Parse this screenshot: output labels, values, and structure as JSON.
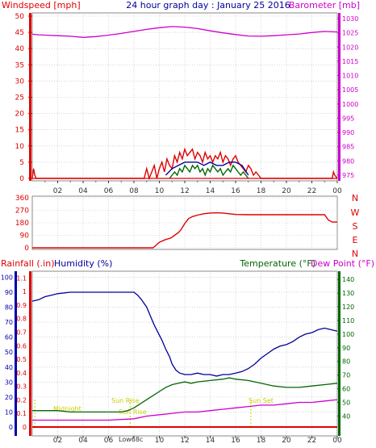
{
  "header": {
    "left_title": "Windspeed [mph]",
    "center_title": "24 hour graph day : January 25 2016",
    "right_title": "Barometer [mb]"
  },
  "direction_labels": [
    "N",
    "W",
    "S",
    "E",
    "N"
  ],
  "bottom_labels": {
    "rainfall": "Rainfall (.in)",
    "humidity": "Humidity (%)",
    "temperature": "Temperature (°F)",
    "dewpoint": "Dew Point (°F)"
  },
  "annotations": {
    "midnight": "Midnight",
    "sunrise": "Sun Rise",
    "sunset": "Sun Set",
    "low": "Low68c"
  },
  "colors": {
    "red": "#e00000",
    "magenta": "#cc00cc",
    "blue": "#000099",
    "green": "#006600",
    "axis_blue": "#0000aa",
    "grid": "#bbbbbb",
    "annotation": "#cccc00",
    "background": "#ffffff"
  },
  "chart_data": [
    {
      "type": "line",
      "name": "top",
      "xlabel": "",
      "x_ticks": [
        "02",
        "04",
        "06",
        "08",
        "10",
        "12",
        "14",
        "16",
        "18",
        "20",
        "22",
        "00"
      ],
      "xlim": [
        0,
        24
      ],
      "y_left": {
        "label": "Windspeed [mph]",
        "ticks": [
          0,
          5,
          10,
          15,
          20,
          25,
          30,
          35,
          40,
          45,
          50
        ],
        "ylim": [
          0,
          50
        ]
      },
      "y_right": {
        "label": "Barometer [mb]",
        "ticks": [
          975,
          980,
          985,
          990,
          995,
          1000,
          1005,
          1010,
          1015,
          1020,
          1025,
          1030
        ],
        "ylim": [
          973,
          1032
        ]
      },
      "grid": true,
      "series": [
        {
          "name": "Barometer",
          "axis": "right",
          "color": "#cc00cc",
          "x": [
            0,
            0.5,
            1,
            2,
            3,
            4,
            5,
            6,
            7,
            8,
            9,
            10,
            11,
            12,
            13,
            14,
            15,
            16,
            17,
            18,
            19,
            20,
            21,
            22,
            23,
            24
          ],
          "y": [
            1024.5,
            1024.3,
            1024.2,
            1024.0,
            1023.8,
            1023.4,
            1023.7,
            1024.2,
            1024.8,
            1025.5,
            1026.2,
            1026.8,
            1027.2,
            1027.0,
            1026.5,
            1025.7,
            1025.0,
            1024.4,
            1023.9,
            1023.8,
            1024.0,
            1024.3,
            1024.6,
            1025.1,
            1025.5,
            1025.3
          ]
        },
        {
          "name": "Windspeed gust",
          "axis": "left",
          "color": "#e00000",
          "x": [
            0,
            0.1,
            0.2,
            0.3,
            8.8,
            9.0,
            9.2,
            9.4,
            9.6,
            9.8,
            10.0,
            10.2,
            10.4,
            10.6,
            10.8,
            11.0,
            11.2,
            11.4,
            11.6,
            11.8,
            12.0,
            12.2,
            12.4,
            12.6,
            12.8,
            13.0,
            13.2,
            13.4,
            13.6,
            13.8,
            14.0,
            14.2,
            14.4,
            14.6,
            14.8,
            15.0,
            15.2,
            15.4,
            15.6,
            15.8,
            16.0,
            16.2,
            16.4,
            16.6,
            16.8,
            17.0,
            17.2,
            17.4,
            17.6,
            17.8,
            18.0,
            23.6,
            23.7,
            23.8,
            24
          ],
          "y": [
            0,
            3,
            1,
            0,
            0,
            3,
            0,
            2,
            4,
            0,
            3,
            5,
            2,
            6,
            4,
            3,
            7,
            5,
            8,
            6,
            9,
            7,
            8,
            9,
            6,
            8,
            7,
            5,
            8,
            6,
            7,
            5,
            7,
            6,
            8,
            5,
            7,
            6,
            4,
            6,
            7,
            5,
            4,
            3,
            2,
            4,
            3,
            1,
            2,
            1,
            0,
            0,
            2,
            1,
            0
          ]
        },
        {
          "name": "Windspeed average",
          "axis": "left",
          "color": "#000099",
          "x": [
            10.5,
            11,
            11.5,
            12,
            12.5,
            13,
            13.5,
            14,
            14.5,
            15,
            15.5,
            16,
            16.5,
            17
          ],
          "y": [
            1,
            3,
            4,
            5,
            5,
            5,
            4,
            5,
            4,
            4,
            5,
            5,
            4,
            1
          ]
        },
        {
          "name": "Windspeed sustained",
          "axis": "left",
          "color": "#006600",
          "x": [
            10.8,
            11.0,
            11.2,
            11.4,
            11.6,
            11.8,
            12.0,
            12.2,
            12.4,
            12.6,
            12.8,
            13.0,
            13.2,
            13.4,
            13.6,
            13.8,
            14.0,
            14.2,
            14.4,
            14.6,
            14.8,
            15.0,
            15.2,
            15.4,
            15.6,
            15.8,
            16.0,
            16.2,
            16.4,
            16.6,
            16.8,
            17.0
          ],
          "y": [
            0,
            1,
            2,
            1,
            3,
            2,
            4,
            3,
            2,
            4,
            3,
            4,
            2,
            3,
            1,
            3,
            2,
            4,
            3,
            2,
            3,
            1,
            2,
            3,
            2,
            4,
            3,
            2,
            1,
            2,
            1,
            0
          ]
        }
      ]
    },
    {
      "type": "line",
      "name": "direction",
      "xlim": [
        0,
        24
      ],
      "y_left": {
        "ticks": [
          0,
          90,
          180,
          270,
          360
        ],
        "ylim": [
          0,
          360
        ]
      },
      "grid": true,
      "series": [
        {
          "name": "Wind direction",
          "color": "#e00000",
          "x": [
            0,
            9.5,
            9.7,
            10.0,
            10.5,
            10.9,
            11.2,
            11.5,
            11.7,
            12.0,
            12.3,
            12.6,
            13.0,
            13.5,
            14.0,
            14.5,
            15.0,
            15.5,
            16.0,
            17.0,
            18.0,
            19.0,
            20.0,
            21.0,
            22.0,
            23.0,
            23.3,
            23.6,
            24.0
          ],
          "y": [
            0,
            0,
            15,
            40,
            60,
            70,
            90,
            110,
            130,
            175,
            210,
            225,
            235,
            245,
            250,
            252,
            250,
            245,
            240,
            238,
            238,
            238,
            238,
            238,
            238,
            238,
            200,
            185,
            185
          ]
        }
      ]
    },
    {
      "type": "line",
      "name": "bottom",
      "xlim": [
        0,
        24
      ],
      "y_left_rain": {
        "label": "Rainfall (.in)",
        "ticks": [
          0,
          0.1,
          0.2,
          0.3,
          0.4,
          0.5,
          0.6,
          0.7,
          0.8,
          0.9,
          1,
          1.1
        ],
        "ylim": [
          0,
          1.15
        ]
      },
      "y_left_humidity": {
        "label": "Humidity (%)",
        "ticks": [
          0,
          10,
          20,
          30,
          40,
          50,
          60,
          70,
          80,
          90,
          100
        ],
        "ylim": [
          0,
          104
        ]
      },
      "y_right": {
        "label": "Temperature (°F)",
        "ticks": [
          40,
          50,
          60,
          70,
          80,
          90,
          100,
          110,
          120,
          130,
          140
        ],
        "ylim": [
          32,
          146
        ]
      },
      "grid": true,
      "series": [
        {
          "name": "Humidity",
          "color": "#000099",
          "x": [
            0,
            0.5,
            1.0,
            1.5,
            2,
            3,
            4,
            5,
            6,
            7,
            8,
            8.3,
            8.6,
            9.0,
            9.3,
            9.6,
            9.9,
            10.2,
            10.5,
            10.8,
            11.0,
            11.3,
            11.6,
            12.0,
            12.5,
            13.0,
            13.5,
            14.0,
            14.5,
            15.0,
            15.5,
            16.0,
            16.5,
            17.0,
            17.5,
            18.0,
            18.5,
            19.0,
            19.5,
            20.0,
            20.5,
            21.0,
            21.5,
            22.0,
            22.5,
            23.0,
            23.5,
            24.0
          ],
          "y": [
            84,
            85,
            87,
            88,
            89,
            90,
            90,
            90,
            90,
            90,
            90,
            88,
            85,
            80,
            74,
            68,
            63,
            58,
            52,
            47,
            42,
            38,
            36,
            35,
            35,
            36,
            35,
            35,
            34,
            35,
            35,
            36,
            37,
            39,
            42,
            46,
            49,
            52,
            54,
            55,
            57,
            60,
            62,
            63,
            65,
            66,
            65,
            64
          ]
        },
        {
          "name": "Temperature",
          "color": "#006600",
          "x": [
            0,
            1,
            2,
            3,
            4,
            5,
            6,
            7,
            7.5,
            8,
            8.5,
            9,
            9.5,
            10,
            10.5,
            11,
            11.5,
            12,
            12.5,
            13,
            14,
            15,
            15.5,
            16,
            17,
            18,
            19,
            20,
            21,
            22,
            23,
            24
          ],
          "y": [
            44,
            44,
            44,
            43,
            43,
            43,
            43,
            43,
            44,
            46,
            49,
            52,
            55,
            58,
            61,
            63,
            64,
            65,
            64,
            65,
            66,
            67,
            68,
            67,
            66,
            64,
            62,
            61,
            61,
            62,
            63,
            64
          ]
        },
        {
          "name": "Dew Point",
          "color": "#cc00cc",
          "x": [
            0,
            2,
            4,
            6,
            8,
            9,
            10,
            11,
            12,
            13,
            14,
            15,
            16,
            17,
            18,
            19,
            20,
            21,
            22,
            23,
            24
          ],
          "y": [
            37,
            37,
            37,
            37,
            38,
            40,
            41,
            42,
            43,
            43,
            44,
            45,
            46,
            47,
            48,
            48,
            49,
            50,
            50,
            51,
            52
          ]
        },
        {
          "name": "Rainfall",
          "color": "#e00000",
          "x": [
            0,
            24
          ],
          "y": [
            0,
            0
          ]
        }
      ]
    }
  ]
}
